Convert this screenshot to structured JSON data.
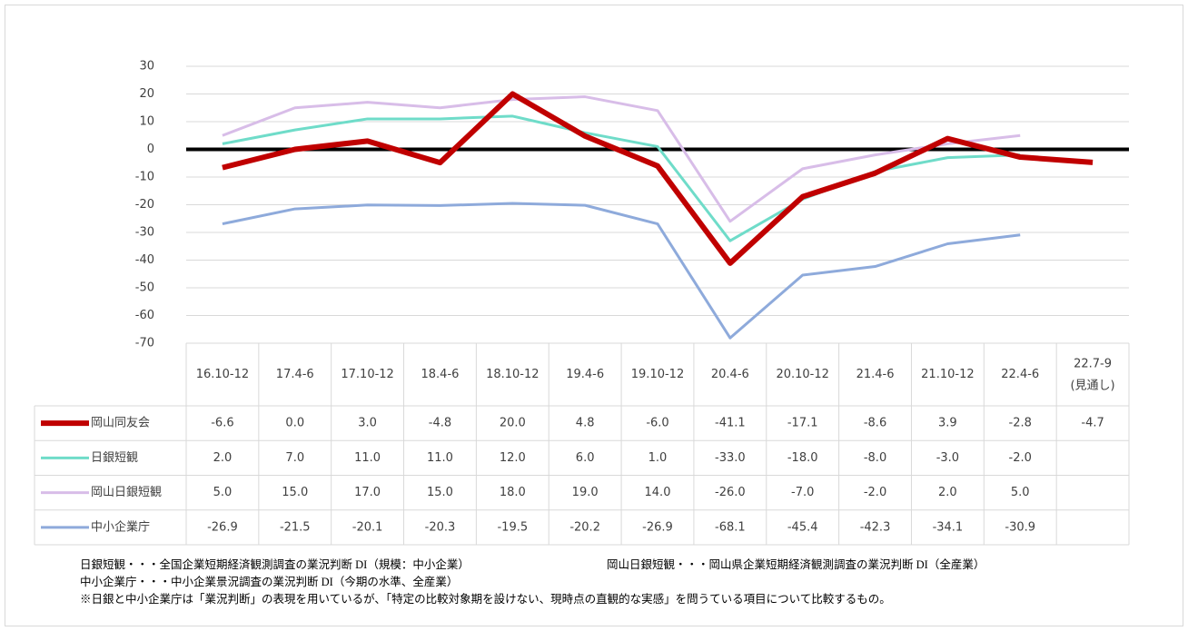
{
  "chart_data": {
    "type": "line",
    "categories": [
      "16.10-12",
      "17.4-6",
      "17.10-12",
      "18.4-6",
      "18.10-12",
      "19.4-6",
      "19.10-12",
      "20.4-6",
      "20.10-12",
      "21.4-6",
      "21.10-12",
      "22.4-6",
      "22.7-9\n(見通し)"
    ],
    "series": [
      {
        "name": "岡山同友会",
        "color": "#c00000",
        "width": 6,
        "values": [
          -6.6,
          0,
          3,
          -4.8,
          20,
          4.8,
          -6,
          -41.1,
          -17.1,
          -8.6,
          3.9,
          -2.8,
          -4.7
        ],
        "value_labels": [
          "-6.6",
          "0.0",
          "3.0",
          "-4.8",
          "20.0",
          "4.8",
          "-6.0",
          "-41.1",
          "-17.1",
          "-8.6",
          "3.9",
          "-2.8",
          "-4.7"
        ]
      },
      {
        "name": "日銀短観",
        "color": "#6fdcc9",
        "width": 3,
        "values": [
          2,
          7,
          11,
          11,
          12,
          6,
          1,
          -33,
          -18,
          -8,
          -3,
          -2,
          null
        ],
        "value_labels": [
          "2.0",
          "7.0",
          "11.0",
          "11.0",
          "12.0",
          "6.0",
          "1.0",
          "-33.0",
          "-18.0",
          "-8.0",
          "-3.0",
          "-2.0",
          null
        ]
      },
      {
        "name": "岡山日銀短観",
        "color": "#d8bde8",
        "width": 3,
        "values": [
          5,
          15,
          17,
          15,
          18,
          19,
          14,
          -26,
          -7,
          -2,
          2,
          5,
          null
        ],
        "value_labels": [
          "5.0",
          "15.0",
          "17.0",
          "15.0",
          "18.0",
          "19.0",
          "14.0",
          "-26.0",
          "-7.0",
          "-2.0",
          "2.0",
          "5.0",
          null
        ]
      },
      {
        "name": "中小企業庁",
        "color": "#8eaadb",
        "width": 3,
        "values": [
          -26.9,
          -21.5,
          -20.1,
          -20.3,
          -19.5,
          -20.2,
          -26.9,
          -68.1,
          -45.4,
          -42.3,
          -34.1,
          -30.9,
          null
        ],
        "value_labels": [
          "-26.9",
          "-21.5",
          "-20.1",
          "-20.3",
          "-19.5",
          "-20.2",
          "-26.9",
          "-68.1",
          "-45.4",
          "-42.3",
          "-34.1",
          "-30.9",
          null
        ]
      }
    ],
    "ylim": [
      -70,
      30
    ],
    "yticks": [
      30,
      20,
      10,
      0,
      -10,
      -20,
      -30,
      -40,
      -50,
      -60,
      -70
    ],
    "grid": true,
    "notes": [
      "日銀短観・・・全国企業短期経済観測調査の業況判断 DI（規模：中小企業）",
      "岡山日銀短観・・・岡山県企業短期経済観測調査の業況判断 DI（全産業）",
      "中小企業庁・・・中小企業景況調査の業況判断 DI（今期の水準、全産業）",
      "※日銀と中小企業庁は「業況判断」の表現を用いているが、「特定の比較対象期を設けない、現時点の直観的な実感」を問うている項目について比較するもの。"
    ]
  }
}
